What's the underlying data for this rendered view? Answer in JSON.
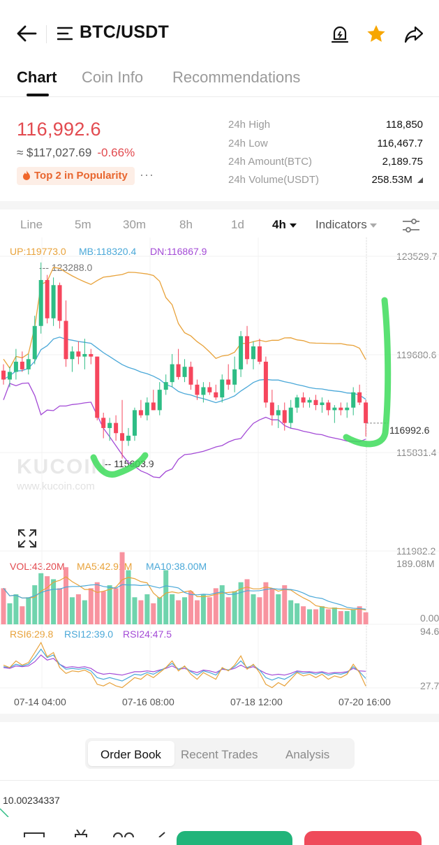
{
  "header": {
    "pair": "BTC/USDT"
  },
  "tabs": [
    {
      "label": "Chart",
      "active": true
    },
    {
      "label": "Coin Info",
      "active": false
    },
    {
      "label": "Recommendations",
      "active": false
    }
  ],
  "ticker": {
    "last_price": "116,992.6",
    "fiat_price": "≈ $117,027.69",
    "change": "-0.66%",
    "popularity": "Top 2 in Popularity",
    "more": "···",
    "stats": [
      {
        "label": "24h High",
        "value": "118,850"
      },
      {
        "label": "24h Low",
        "value": "116,467.7"
      },
      {
        "label": "24h Amount(BTC)",
        "value": "2,189.75"
      },
      {
        "label": "24h Volume(USDT)",
        "value": "258.53M"
      }
    ]
  },
  "intervals": [
    "Line",
    "5m",
    "30m",
    "8h",
    "1d",
    "4h",
    "Indicators"
  ],
  "active_interval": "4h",
  "colors": {
    "up": "#2ebd85",
    "down": "#f6465d",
    "price_red": "#e24a4f",
    "boll_up": "#e8a23a",
    "boll_mb": "#4aa8d8",
    "boll_dn": "#a34ad6"
  },
  "chart_data": {
    "type": "candlestick",
    "boll_legend": {
      "up": "UP:119773.0",
      "mb": "MB:118320.4",
      "dn": "DN:116867.9"
    },
    "y_axis_labels": [
      "123529.7",
      "119680.6",
      "115831.4",
      "111982.2"
    ],
    "current_price_label": "116992.6",
    "max_label": "123288.0",
    "min_label": "115603.9",
    "x_axis_labels": [
      "07-14 04:00",
      "07-16 08:00",
      "07-18 12:00",
      "07-20 16:00"
    ],
    "ylim": [
      111982.2,
      123529.7
    ],
    "candles": [
      {
        "o": 119050,
        "h": 119300,
        "l": 118500,
        "c": 118700
      },
      {
        "o": 118700,
        "h": 119200,
        "l": 118400,
        "c": 119000
      },
      {
        "o": 119000,
        "h": 119900,
        "l": 118700,
        "c": 119400
      },
      {
        "o": 119400,
        "h": 119800,
        "l": 119000,
        "c": 119100
      },
      {
        "o": 119100,
        "h": 119700,
        "l": 118900,
        "c": 119500
      },
      {
        "o": 119500,
        "h": 121200,
        "l": 119300,
        "c": 120800
      },
      {
        "o": 120800,
        "h": 123288,
        "l": 120500,
        "c": 122600
      },
      {
        "o": 122600,
        "h": 122800,
        "l": 120900,
        "c": 121100
      },
      {
        "o": 121100,
        "h": 122700,
        "l": 120800,
        "c": 122400
      },
      {
        "o": 122400,
        "h": 122500,
        "l": 120700,
        "c": 121000
      },
      {
        "o": 121000,
        "h": 121800,
        "l": 119200,
        "c": 119500
      },
      {
        "o": 119500,
        "h": 120000,
        "l": 119000,
        "c": 119800
      },
      {
        "o": 119800,
        "h": 120200,
        "l": 119300,
        "c": 119600
      },
      {
        "o": 119600,
        "h": 120300,
        "l": 119100,
        "c": 119700
      },
      {
        "o": 119700,
        "h": 119900,
        "l": 119300,
        "c": 119600
      },
      {
        "o": 119600,
        "h": 119600,
        "l": 117100,
        "c": 117200
      },
      {
        "o": 117200,
        "h": 117400,
        "l": 116400,
        "c": 116800
      },
      {
        "o": 116800,
        "h": 117200,
        "l": 116300,
        "c": 117000
      },
      {
        "o": 117000,
        "h": 117300,
        "l": 116300,
        "c": 116600
      },
      {
        "o": 116600,
        "h": 117900,
        "l": 115603.9,
        "c": 116300
      },
      {
        "o": 116300,
        "h": 116800,
        "l": 116100,
        "c": 116500
      },
      {
        "o": 116500,
        "h": 117600,
        "l": 116300,
        "c": 117500
      },
      {
        "o": 117500,
        "h": 117900,
        "l": 117200,
        "c": 117300
      },
      {
        "o": 117300,
        "h": 118000,
        "l": 117100,
        "c": 117800
      },
      {
        "o": 117800,
        "h": 118300,
        "l": 117500,
        "c": 117500
      },
      {
        "o": 117500,
        "h": 118600,
        "l": 117300,
        "c": 118300
      },
      {
        "o": 118300,
        "h": 118900,
        "l": 118100,
        "c": 118600
      },
      {
        "o": 118600,
        "h": 119700,
        "l": 118400,
        "c": 119300
      },
      {
        "o": 119300,
        "h": 119900,
        "l": 118700,
        "c": 118800
      },
      {
        "o": 118800,
        "h": 119500,
        "l": 118600,
        "c": 119200
      },
      {
        "o": 119200,
        "h": 119400,
        "l": 118300,
        "c": 118500
      },
      {
        "o": 118500,
        "h": 118700,
        "l": 117900,
        "c": 118100
      },
      {
        "o": 118100,
        "h": 118600,
        "l": 117800,
        "c": 118400
      },
      {
        "o": 118400,
        "h": 118600,
        "l": 118100,
        "c": 118200
      },
      {
        "o": 118200,
        "h": 118500,
        "l": 117900,
        "c": 118000
      },
      {
        "o": 118000,
        "h": 118900,
        "l": 117800,
        "c": 118700
      },
      {
        "o": 118700,
        "h": 119300,
        "l": 118300,
        "c": 118500
      },
      {
        "o": 118500,
        "h": 119600,
        "l": 118200,
        "c": 119100
      },
      {
        "o": 119100,
        "h": 120600,
        "l": 118800,
        "c": 120400
      },
      {
        "o": 120400,
        "h": 120800,
        "l": 119300,
        "c": 119500
      },
      {
        "o": 119500,
        "h": 120200,
        "l": 119100,
        "c": 120000
      },
      {
        "o": 120000,
        "h": 120300,
        "l": 119300,
        "c": 119400
      },
      {
        "o": 119400,
        "h": 119600,
        "l": 117600,
        "c": 117800
      },
      {
        "o": 117800,
        "h": 118300,
        "l": 116900,
        "c": 117300
      },
      {
        "o": 117300,
        "h": 117700,
        "l": 116800,
        "c": 117500
      },
      {
        "o": 117500,
        "h": 117800,
        "l": 116700,
        "c": 117000
      },
      {
        "o": 117000,
        "h": 117900,
        "l": 116800,
        "c": 117600
      },
      {
        "o": 117600,
        "h": 118100,
        "l": 117400,
        "c": 118000
      },
      {
        "o": 118000,
        "h": 118200,
        "l": 117600,
        "c": 117800
      },
      {
        "o": 117800,
        "h": 118000,
        "l": 117600,
        "c": 117900
      },
      {
        "o": 117900,
        "h": 118100,
        "l": 117500,
        "c": 117700
      },
      {
        "o": 117700,
        "h": 118000,
        "l": 117400,
        "c": 117800
      },
      {
        "o": 117800,
        "h": 117900,
        "l": 117300,
        "c": 117500
      },
      {
        "o": 117500,
        "h": 117700,
        "l": 117000,
        "c": 117600
      },
      {
        "o": 117600,
        "h": 117800,
        "l": 117300,
        "c": 117500
      },
      {
        "o": 117500,
        "h": 117800,
        "l": 117200,
        "c": 117600
      },
      {
        "o": 117600,
        "h": 118400,
        "l": 117300,
        "c": 118200
      },
      {
        "o": 118200,
        "h": 118500,
        "l": 117700,
        "c": 117800
      },
      {
        "o": 117800,
        "h": 117900,
        "l": 116467.7,
        "c": 116992.6
      }
    ],
    "volume": {
      "legend": {
        "vol": "VOL:43.20M",
        "ma5": "MA5:42.91M",
        "ma10": "MA10:38.00M"
      },
      "y_axis_labels": [
        "189.08M",
        "0.00"
      ],
      "ylim": [
        0,
        189.08
      ],
      "values": [
        60,
        35,
        50,
        30,
        45,
        65,
        85,
        80,
        75,
        60,
        95,
        45,
        50,
        40,
        60,
        70,
        55,
        65,
        60,
        120,
        90,
        45,
        40,
        50,
        35,
        45,
        90,
        50,
        40,
        45,
        55,
        40,
        50,
        45,
        60,
        65,
        45,
        55,
        70,
        75,
        50,
        45,
        70,
        60,
        50,
        65,
        40,
        35,
        30,
        25,
        25,
        30,
        25,
        28,
        22,
        22,
        25,
        30,
        20
      ]
    },
    "rsi": {
      "legend": {
        "rsi6": "RSI6:29.8",
        "rsi12": "RSI12:39.0",
        "rsi24": "RSI24:47.5"
      },
      "y_axis_labels": [
        "94.6",
        "27.7"
      ],
      "ylim": [
        27.7,
        94.6
      ],
      "rsi6": [
        55,
        52,
        60,
        55,
        58,
        70,
        82,
        65,
        70,
        52,
        45,
        48,
        47,
        49,
        45,
        32,
        30,
        34,
        30,
        28,
        34,
        40,
        38,
        44,
        40,
        46,
        52,
        60,
        48,
        54,
        44,
        38,
        46,
        42,
        38,
        52,
        48,
        55,
        66,
        50,
        56,
        46,
        32,
        28,
        34,
        30,
        38,
        46,
        42,
        44,
        40,
        44,
        38,
        42,
        40,
        44,
        56,
        46,
        29.8
      ],
      "rsi12": [
        53,
        52,
        56,
        54,
        56,
        64,
        74,
        64,
        67,
        56,
        50,
        51,
        50,
        51,
        48,
        40,
        38,
        40,
        38,
        36,
        40,
        44,
        43,
        46,
        44,
        48,
        52,
        57,
        50,
        53,
        47,
        43,
        48,
        46,
        43,
        51,
        49,
        53,
        60,
        52,
        55,
        49,
        40,
        37,
        40,
        38,
        42,
        47,
        45,
        46,
        44,
        46,
        43,
        45,
        44,
        46,
        53,
        47,
        39.0
      ],
      "rsi24": [
        52,
        51,
        54,
        53,
        54,
        59,
        67,
        61,
        63,
        56,
        52,
        53,
        52,
        53,
        51,
        46,
        44,
        45,
        44,
        43,
        45,
        47,
        47,
        48,
        47,
        49,
        51,
        54,
        50,
        51,
        48,
        46,
        49,
        48,
        46,
        50,
        49,
        51,
        55,
        51,
        53,
        49,
        45,
        43,
        44,
        43,
        45,
        48,
        47,
        47,
        46,
        47,
        45,
        46,
        46,
        47,
        51,
        48,
        47.5
      ]
    }
  },
  "bottom_tabs": [
    {
      "label": "Order Book",
      "active": true
    },
    {
      "label": "Recent Trades",
      "active": false
    },
    {
      "label": "Analysis",
      "active": false
    }
  ],
  "orderbook_first_value": "10.00234337",
  "watermark": {
    "logo": "KUCOIN",
    "url": "www.kucoin.com"
  }
}
